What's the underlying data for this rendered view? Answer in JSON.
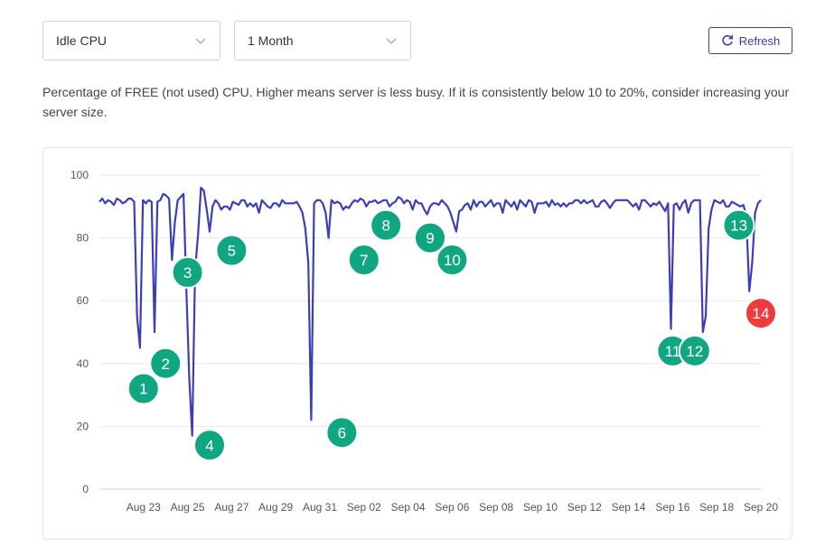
{
  "controls": {
    "metric_select": {
      "value": "Idle CPU",
      "icon": "chevron-down-icon"
    },
    "range_select": {
      "value": "1 Month",
      "icon": "chevron-down-icon"
    },
    "refresh_button": {
      "label": "Refresh",
      "icon": "refresh-icon"
    }
  },
  "description": "Percentage of FREE (not used) CPU. Higher means server is less busy. If it is consistently below 10 to 20%, consider increasing your server size.",
  "colors": {
    "line": "#3b3fb5",
    "marker_normal": "#11a682",
    "marker_alert": "#ee3b3b",
    "accent": "#3b3fa6"
  },
  "chart_data": {
    "type": "line",
    "title": "",
    "xlabel": "",
    "ylabel": "",
    "ylim": [
      0,
      100
    ],
    "yticks": [
      0,
      20,
      40,
      60,
      80,
      100
    ],
    "grid": true,
    "legend": "none",
    "xlim": [
      "Aug 21",
      "Sep 20"
    ],
    "xtick_labels": [
      "Aug 23",
      "Aug 25",
      "Aug 27",
      "Aug 29",
      "Aug 31",
      "Sep 02",
      "Sep 04",
      "Sep 06",
      "Sep 08",
      "Sep 10",
      "Sep 12",
      "Sep 14",
      "Sep 16",
      "Sep 18",
      "Sep 20"
    ],
    "series": [
      {
        "values": [
          91.5,
          92.5,
          91,
          92,
          91.5,
          90.5,
          92.5,
          92,
          91,
          91.5,
          92.5,
          92.5,
          91.5,
          55,
          45,
          92,
          91,
          92,
          91.5,
          50,
          91.5,
          92,
          94,
          93.5,
          92.5,
          73,
          85,
          92,
          93,
          94,
          63,
          35,
          17,
          70,
          81,
          96,
          95,
          89,
          82,
          90,
          92,
          91,
          89,
          90,
          90,
          89,
          91.5,
          91,
          90.5,
          92,
          92,
          90,
          91,
          90,
          91,
          88,
          92,
          91,
          90,
          89.5,
          91,
          91,
          90,
          92,
          91,
          91,
          91,
          91,
          91.5,
          90,
          88,
          83,
          72,
          22,
          91,
          92,
          92,
          91,
          88,
          80,
          92,
          91,
          91.5,
          91,
          89,
          90,
          89.5,
          91,
          92,
          91.5,
          92.5,
          92,
          90,
          91.5,
          91.5,
          92,
          91,
          91.5,
          92,
          92,
          90,
          91,
          91.5,
          93,
          92.5,
          91,
          92,
          91.5,
          89,
          92,
          91,
          91,
          89,
          87.5,
          90,
          91,
          91,
          90.5,
          92,
          91,
          90,
          88,
          85,
          82,
          88.5,
          89,
          90.5,
          91,
          89,
          92,
          90,
          91.5,
          91.5,
          90,
          91,
          92,
          90,
          91,
          91,
          88,
          92,
          91,
          90,
          91.5,
          89,
          92,
          91,
          90,
          92,
          91.5,
          88,
          91,
          91,
          91,
          91.5,
          90,
          92,
          90.5,
          91,
          90,
          91,
          90,
          91,
          91,
          92,
          92,
          91,
          92,
          91,
          91.5,
          92,
          90,
          90,
          91.5,
          92,
          91,
          89.5,
          91,
          92,
          92,
          92,
          92,
          92,
          91,
          90,
          91,
          89,
          92,
          92,
          91,
          90,
          91,
          90.5,
          91.5,
          90,
          88.5,
          91,
          51,
          90.5,
          91,
          89,
          91,
          92,
          88,
          91,
          92,
          92,
          92,
          50,
          55,
          83,
          89,
          92,
          91.5,
          91,
          92,
          90,
          90,
          91.5,
          91,
          90.5,
          90,
          90.5,
          87,
          63,
          72,
          88,
          91,
          92
        ]
      }
    ],
    "annotations": [
      {
        "label": "1",
        "x": "Aug 23",
        "y": 32,
        "severity": "normal"
      },
      {
        "label": "2",
        "x": "Aug 24",
        "y": 40,
        "severity": "normal"
      },
      {
        "label": "3",
        "x": "Aug 25",
        "y": 69,
        "severity": "normal"
      },
      {
        "label": "4",
        "x": "Aug 26",
        "y": 14,
        "severity": "normal"
      },
      {
        "label": "5",
        "x": "Aug 27",
        "y": 76,
        "severity": "normal"
      },
      {
        "label": "6",
        "x": "Sep 01",
        "y": 18,
        "severity": "normal"
      },
      {
        "label": "7",
        "x": "Sep 02",
        "y": 73,
        "severity": "normal"
      },
      {
        "label": "8",
        "x": "Sep 03",
        "y": 84,
        "severity": "normal"
      },
      {
        "label": "9",
        "x": "Sep 05",
        "y": 80,
        "severity": "normal"
      },
      {
        "label": "10",
        "x": "Sep 06",
        "y": 73,
        "severity": "normal"
      },
      {
        "label": "11",
        "x": "Sep 16",
        "y": 44,
        "severity": "normal"
      },
      {
        "label": "12",
        "x": "Sep 17",
        "y": 44,
        "severity": "normal"
      },
      {
        "label": "13",
        "x": "Sep 19",
        "y": 84,
        "severity": "normal"
      },
      {
        "label": "14",
        "x": "Sep 20",
        "y": 56,
        "severity": "alert"
      }
    ]
  }
}
